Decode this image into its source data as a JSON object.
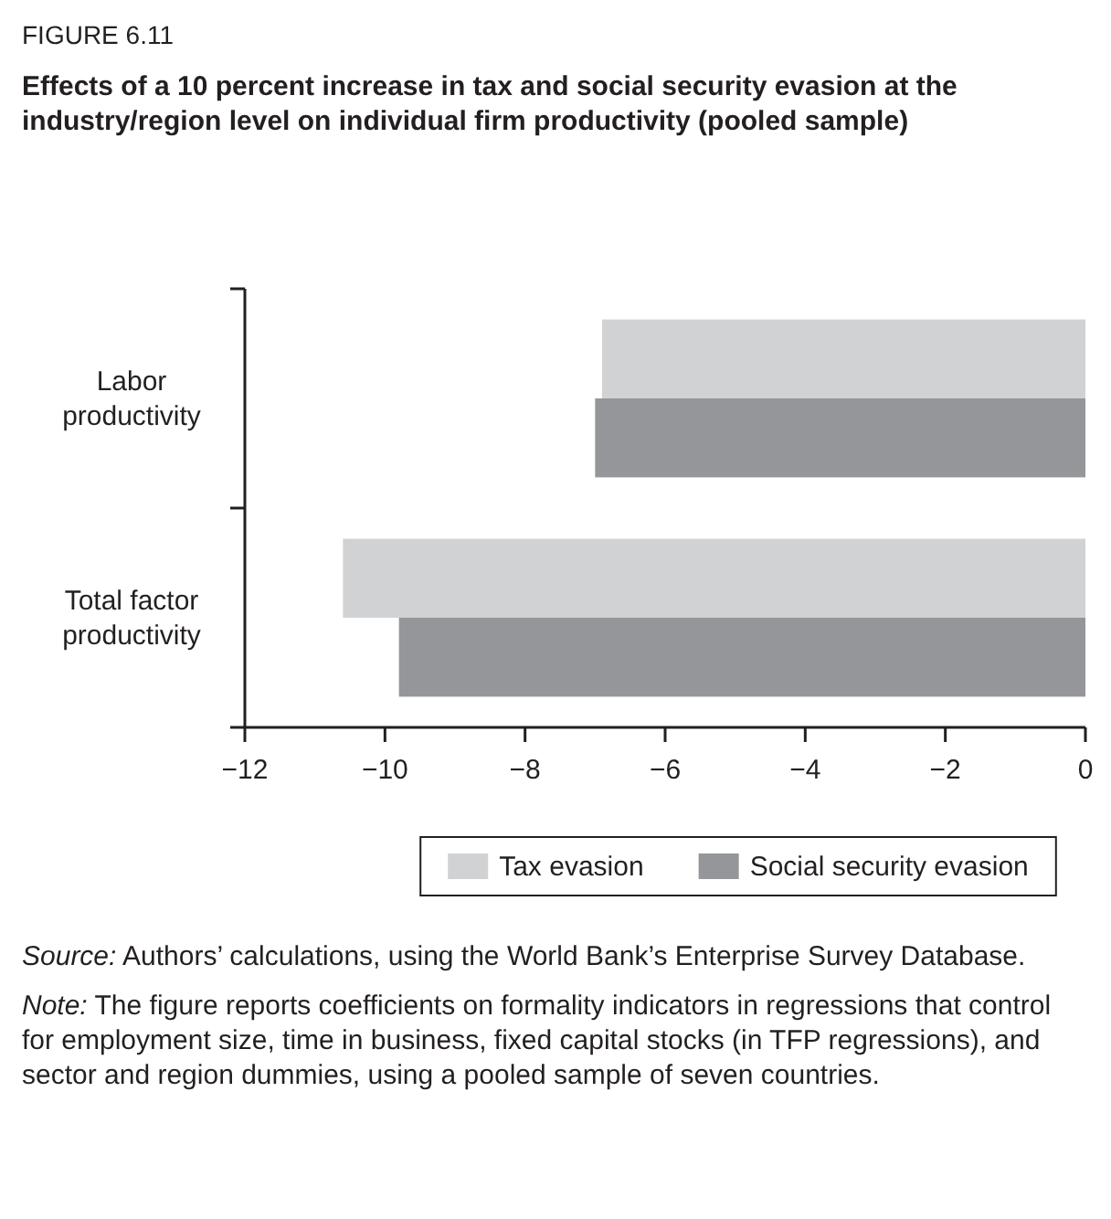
{
  "chart_data": {
    "type": "bar",
    "orientation": "horizontal",
    "title": "Effects of a 10 percent increase in tax and social security evasion at the industry/region level on individual firm productivity (pooled sample)",
    "categories": [
      "Labor productivity",
      "Total factor productivity"
    ],
    "series": [
      {
        "name": "Tax evasion",
        "color": "#d1d2d4",
        "values": [
          -6.9,
          -10.6
        ]
      },
      {
        "name": "Social security evasion",
        "color": "#959699",
        "values": [
          -7.0,
          -9.8
        ]
      }
    ],
    "xlim": [
      -12,
      0
    ],
    "xticks": [
      {
        "value": -12,
        "label": "−12"
      },
      {
        "value": -10,
        "label": "−10"
      },
      {
        "value": -8,
        "label": "−8"
      },
      {
        "value": -6,
        "label": "−6"
      },
      {
        "value": -4,
        "label": "−4"
      },
      {
        "value": -2,
        "label": "−2"
      },
      0
    ],
    "legend": "bottom",
    "grid": false,
    "annotations": [
      "FIGURE 6.11",
      "Source: Authors’ calculations, using the World Bank’s Enterprise Survey Database.",
      "Note: The figure reports coefficients on formality indicators in regressions that control for employment size, time in business, fixed capital stocks (in TFP regressions), and sector and region dummies, using a pooled sample of seven countries."
    ]
  }
}
